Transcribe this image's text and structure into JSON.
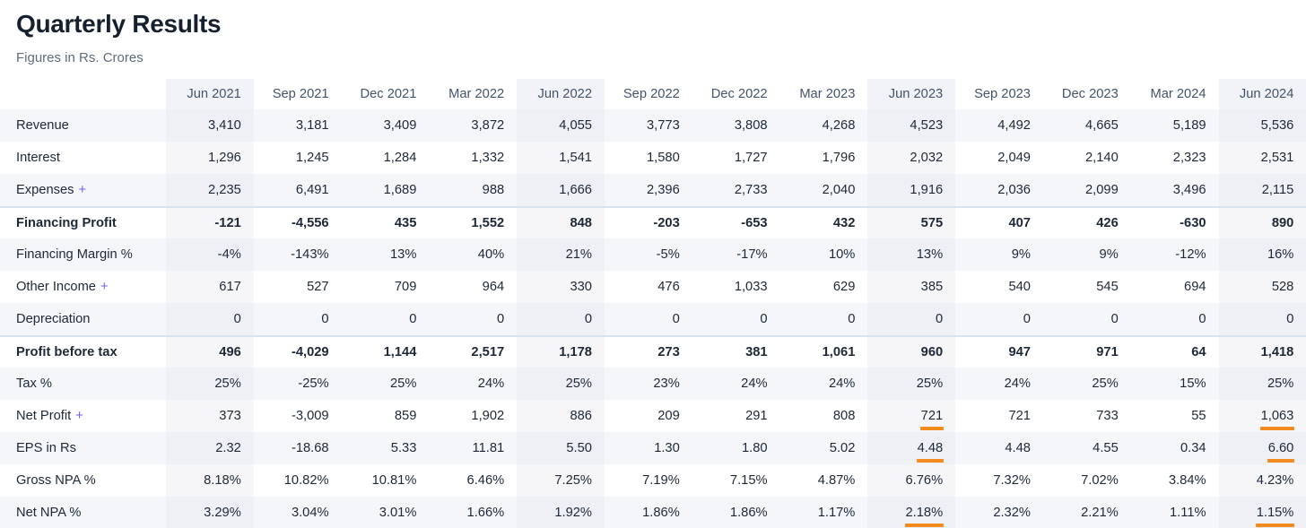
{
  "page": {
    "title": "Quarterly Results",
    "subtitle": "Figures in Rs. Crores"
  },
  "colors": {
    "accent_underline": "#f28b1d",
    "expand_link": "#6c63e8",
    "row_stripe": "#f5f6fa",
    "column_highlight": "#f2f3f8",
    "separator": "#d9e3ee"
  },
  "table": {
    "expand_symbol": "+",
    "columns": [
      "Jun 2021",
      "Sep 2021",
      "Dec 2021",
      "Mar 2022",
      "Jun 2022",
      "Sep 2022",
      "Dec 2022",
      "Mar 2023",
      "Jun 2023",
      "Sep 2023",
      "Dec 2023",
      "Mar 2024",
      "Jun 2024"
    ],
    "highlighted_columns": [
      0,
      4,
      8,
      12
    ],
    "rows": [
      {
        "label": "Revenue",
        "expandable": false,
        "bold": false,
        "separator_above": false,
        "stripe": true,
        "values": [
          "3,410",
          "3,181",
          "3,409",
          "3,872",
          "4,055",
          "3,773",
          "3,808",
          "4,268",
          "4,523",
          "4,492",
          "4,665",
          "5,189",
          "5,536"
        ],
        "underline_cols": []
      },
      {
        "label": "Interest",
        "expandable": false,
        "bold": false,
        "separator_above": false,
        "stripe": false,
        "values": [
          "1,296",
          "1,245",
          "1,284",
          "1,332",
          "1,541",
          "1,580",
          "1,727",
          "1,796",
          "2,032",
          "2,049",
          "2,140",
          "2,323",
          "2,531"
        ],
        "underline_cols": []
      },
      {
        "label": "Expenses",
        "expandable": true,
        "bold": false,
        "separator_above": false,
        "stripe": true,
        "values": [
          "2,235",
          "6,491",
          "1,689",
          "988",
          "1,666",
          "2,396",
          "2,733",
          "2,040",
          "1,916",
          "2,036",
          "2,099",
          "3,496",
          "2,115"
        ],
        "underline_cols": []
      },
      {
        "label": "Financing Profit",
        "expandable": false,
        "bold": true,
        "separator_above": true,
        "stripe": false,
        "values": [
          "-121",
          "-4,556",
          "435",
          "1,552",
          "848",
          "-203",
          "-653",
          "432",
          "575",
          "407",
          "426",
          "-630",
          "890"
        ],
        "underline_cols": []
      },
      {
        "label": "Financing Margin %",
        "expandable": false,
        "bold": false,
        "separator_above": false,
        "stripe": true,
        "values": [
          "-4%",
          "-143%",
          "13%",
          "40%",
          "21%",
          "-5%",
          "-17%",
          "10%",
          "13%",
          "9%",
          "9%",
          "-12%",
          "16%"
        ],
        "underline_cols": []
      },
      {
        "label": "Other Income",
        "expandable": true,
        "bold": false,
        "separator_above": false,
        "stripe": false,
        "values": [
          "617",
          "527",
          "709",
          "964",
          "330",
          "476",
          "1,033",
          "629",
          "385",
          "540",
          "545",
          "694",
          "528"
        ],
        "underline_cols": []
      },
      {
        "label": "Depreciation",
        "expandable": false,
        "bold": false,
        "separator_above": false,
        "stripe": true,
        "values": [
          "0",
          "0",
          "0",
          "0",
          "0",
          "0",
          "0",
          "0",
          "0",
          "0",
          "0",
          "0",
          "0"
        ],
        "underline_cols": []
      },
      {
        "label": "Profit before tax",
        "expandable": false,
        "bold": true,
        "separator_above": true,
        "stripe": false,
        "values": [
          "496",
          "-4,029",
          "1,144",
          "2,517",
          "1,178",
          "273",
          "381",
          "1,061",
          "960",
          "947",
          "971",
          "64",
          "1,418"
        ],
        "underline_cols": []
      },
      {
        "label": "Tax %",
        "expandable": false,
        "bold": false,
        "separator_above": false,
        "stripe": true,
        "values": [
          "25%",
          "-25%",
          "25%",
          "24%",
          "25%",
          "23%",
          "24%",
          "24%",
          "25%",
          "24%",
          "25%",
          "15%",
          "25%"
        ],
        "underline_cols": []
      },
      {
        "label": "Net Profit",
        "expandable": true,
        "bold": false,
        "separator_above": false,
        "stripe": false,
        "values": [
          "373",
          "-3,009",
          "859",
          "1,902",
          "886",
          "209",
          "291",
          "808",
          "721",
          "721",
          "733",
          "55",
          "1,063"
        ],
        "underline_cols": [
          8,
          12
        ]
      },
      {
        "label": "EPS in Rs",
        "expandable": false,
        "bold": false,
        "separator_above": false,
        "stripe": true,
        "values": [
          "2.32",
          "-18.68",
          "5.33",
          "11.81",
          "5.50",
          "1.30",
          "1.80",
          "5.02",
          "4.48",
          "4.48",
          "4.55",
          "0.34",
          "6.60"
        ],
        "underline_cols": [
          8,
          12
        ]
      },
      {
        "label": "Gross NPA %",
        "expandable": false,
        "bold": false,
        "separator_above": false,
        "stripe": false,
        "values": [
          "8.18%",
          "10.82%",
          "10.81%",
          "6.46%",
          "7.25%",
          "7.19%",
          "7.15%",
          "4.87%",
          "6.76%",
          "7.32%",
          "7.02%",
          "3.84%",
          "4.23%"
        ],
        "underline_cols": []
      },
      {
        "label": "Net NPA %",
        "expandable": false,
        "bold": false,
        "separator_above": false,
        "stripe": true,
        "values": [
          "3.29%",
          "3.04%",
          "3.01%",
          "1.66%",
          "1.92%",
          "1.86%",
          "1.86%",
          "1.17%",
          "2.18%",
          "2.32%",
          "2.21%",
          "1.11%",
          "1.15%"
        ],
        "underline_cols": [
          8,
          12
        ]
      }
    ]
  }
}
